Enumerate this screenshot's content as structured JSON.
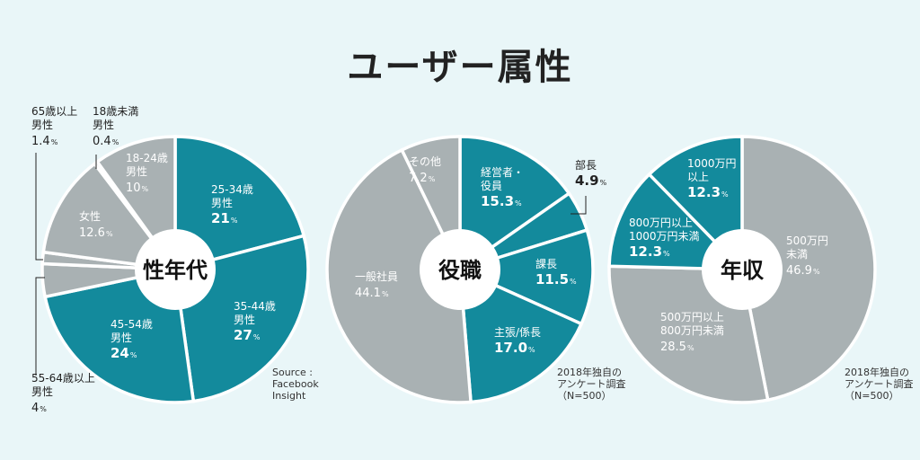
{
  "page": {
    "title": "ユーザー属性",
    "notes": {
      "source1": "Source :\nFacebook\nInsight",
      "source2": "2018年独自の\nアンケート調査\n（N=500）",
      "source3": "2018年独自の\nアンケート調査\n（N=500）"
    }
  },
  "colors": {
    "teal": "#138a9c",
    "gray": "#a9b1b3",
    "center": "#ffffff",
    "bg": "#e9f6f8"
  },
  "chart_data": [
    {
      "type": "pie",
      "center_label": "性年代",
      "slices": [
        {
          "lines": [
            "25-34歳",
            "男性"
          ],
          "value": 21,
          "display": "21",
          "color": "teal"
        },
        {
          "lines": [
            "35-44歳",
            "男性"
          ],
          "value": 27,
          "display": "27",
          "color": "teal"
        },
        {
          "lines": [
            "45-54歳",
            "男性"
          ],
          "value": 24,
          "display": "24",
          "color": "teal"
        },
        {
          "lines": [
            "55-64歳以上",
            "男性"
          ],
          "value": 4,
          "display": "4",
          "color": "gray"
        },
        {
          "lines": [
            "65歳以上",
            "男性"
          ],
          "value": 1.4,
          "display": "1.4",
          "color": "gray"
        },
        {
          "lines": [
            "女性"
          ],
          "value": 12.6,
          "display": "12.6",
          "color": "gray"
        },
        {
          "lines": [
            "18歳未満",
            "男性"
          ],
          "value": 0.4,
          "display": "0.4",
          "color": "gray"
        },
        {
          "lines": [
            "18-24歳",
            "男性"
          ],
          "value": 10,
          "display": "10",
          "color": "gray"
        }
      ]
    },
    {
      "type": "pie",
      "center_label": "役職",
      "slices": [
        {
          "lines": [
            "経営者・",
            "役員"
          ],
          "value": 15.3,
          "display": "15.3",
          "color": "teal"
        },
        {
          "lines": [
            "部長"
          ],
          "value": 4.9,
          "display": "4.9",
          "color": "teal"
        },
        {
          "lines": [
            "課長"
          ],
          "value": 11.5,
          "display": "11.5",
          "color": "teal"
        },
        {
          "lines": [
            "主張/係長"
          ],
          "value": 17.0,
          "display": "17.0",
          "color": "teal"
        },
        {
          "lines": [
            "一般社員"
          ],
          "value": 44.1,
          "display": "44.1",
          "color": "gray"
        },
        {
          "lines": [
            "その他"
          ],
          "value": 7.2,
          "display": "7.2",
          "color": "gray"
        }
      ]
    },
    {
      "type": "pie",
      "center_label": "年収",
      "slices": [
        {
          "lines": [
            "500万円",
            "未満"
          ],
          "value": 46.9,
          "display": "46.9",
          "color": "gray"
        },
        {
          "lines": [
            "500万円以上",
            "800万円未満"
          ],
          "value": 28.5,
          "display": "28.5",
          "color": "gray"
        },
        {
          "lines": [
            "800万円以上",
            "1000万円未満"
          ],
          "value": 12.3,
          "display": "12.3",
          "color": "teal"
        },
        {
          "lines": [
            "1000万円",
            "以上"
          ],
          "value": 12.3,
          "display": "12.3",
          "color": "teal"
        }
      ]
    }
  ]
}
